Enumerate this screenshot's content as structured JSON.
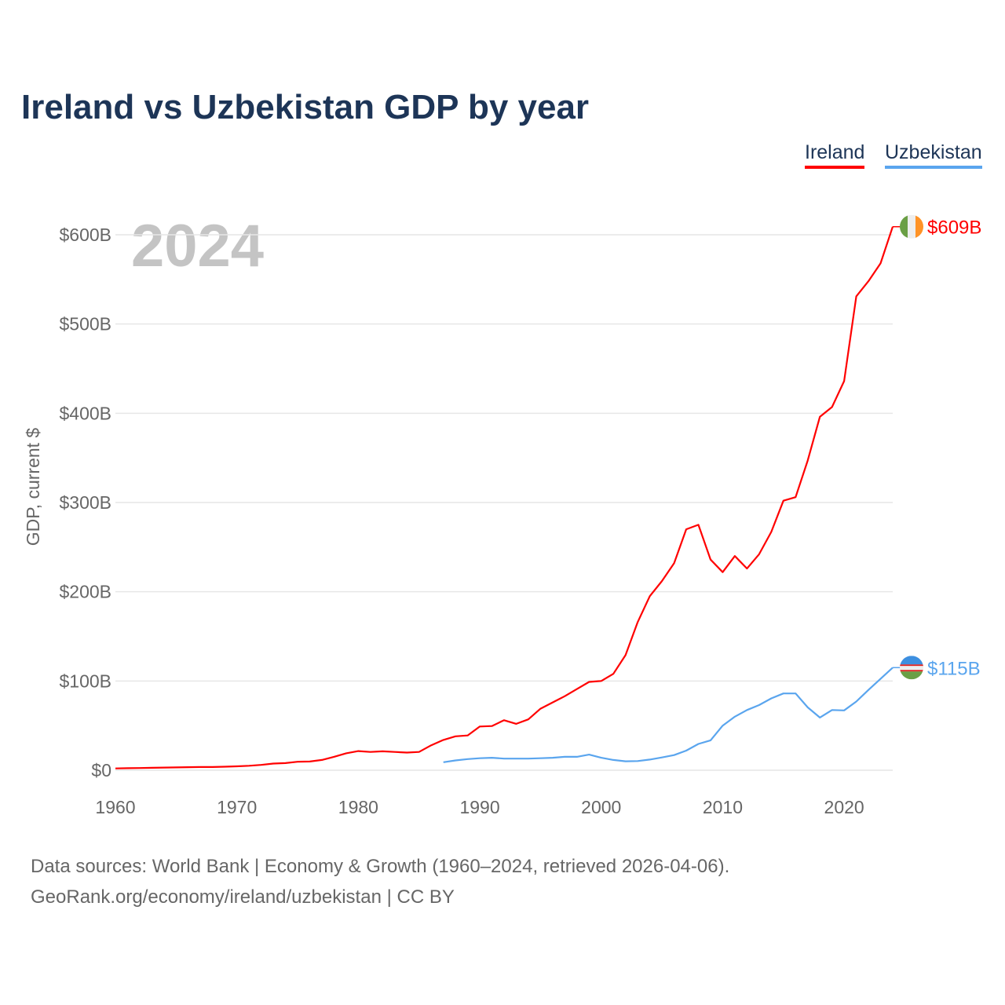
{
  "title": "Ireland vs Uzbekistan GDP by year",
  "legend": [
    "Ireland",
    "Uzbekistan"
  ],
  "footer": {
    "line1": "Data sources: World Bank | Economy & Growth (1960–2024, retrieved 2026-04-06).",
    "line2": "GeoRank.org/economy/ireland/uzbekistan | CC BY"
  },
  "chart_data": {
    "type": "line",
    "title": "Ireland vs Uzbekistan GDP by year",
    "xlabel": "",
    "ylabel": "GDP, current $",
    "year_label": "2024",
    "xlim": [
      1960,
      2024
    ],
    "ylim": [
      0,
      640
    ],
    "x_ticks": [
      1960,
      1970,
      1980,
      1990,
      2000,
      2010,
      2020
    ],
    "x_tick_labels": [
      "1960",
      "1970",
      "1980",
      "1990",
      "2000",
      "2010",
      "2020"
    ],
    "y_ticks": [
      0,
      100,
      200,
      300,
      400,
      500,
      600
    ],
    "y_tick_labels": [
      "$0",
      "$100B",
      "$200B",
      "$300B",
      "$400B",
      "$500B",
      "$600B"
    ],
    "grid": true,
    "legend_position": "top-right",
    "series": [
      {
        "name": "Ireland",
        "color": "#ff0000",
        "end_label": "$609B",
        "start_year": 1960,
        "values": [
          2,
          2.3,
          2.5,
          2.7,
          3,
          3.2,
          3.4,
          3.6,
          3.6,
          4,
          4.4,
          5,
          6,
          7.5,
          8,
          9.5,
          9.8,
          11.5,
          15,
          19,
          21.5,
          20.5,
          21.2,
          20.5,
          19.8,
          20.5,
          28,
          34,
          38,
          39,
          49,
          49.5,
          56,
          52,
          57,
          69,
          76,
          83,
          91,
          99,
          100,
          108,
          129,
          166,
          195,
          212,
          232,
          270,
          275,
          236,
          222,
          240,
          226,
          242,
          267,
          302,
          306,
          347,
          396,
          407,
          436,
          531,
          548,
          568,
          609
        ]
      },
      {
        "name": "Uzbekistan",
        "color": "#5aa5ee",
        "end_label": "$115B",
        "start_year": 1987,
        "values": [
          9,
          11,
          12.5,
          13.5,
          14,
          13,
          13,
          13,
          13.5,
          14,
          15,
          15,
          17.5,
          14,
          11.5,
          10,
          10.3,
          12,
          14.3,
          17,
          22,
          29.5,
          33.5,
          50,
          60,
          67.5,
          73,
          80.5,
          86,
          86,
          70.5,
          59,
          67.5,
          67,
          77,
          90,
          102.4,
          115
        ]
      }
    ]
  }
}
